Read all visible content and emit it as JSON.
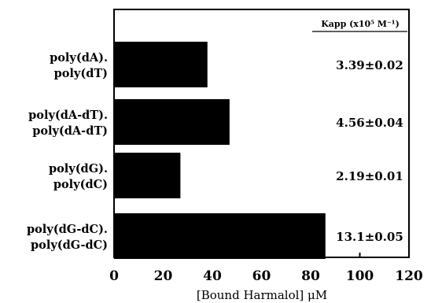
{
  "chart_data": {
    "type": "bar",
    "orientation": "horizontal",
    "categories": [
      [
        "poly(dA).",
        "poly(dT)"
      ],
      [
        "poly(dA-dT).",
        "poly(dA-dT)"
      ],
      [
        "poly(dG).",
        "poly(dC)"
      ],
      [
        "poly(dG-dC).",
        "poly(dG-dC)"
      ]
    ],
    "values": [
      38,
      47,
      27,
      86
    ],
    "annotations": [
      "3.39±0.02",
      "4.56±0.04",
      "2.19±0.01",
      "13.1±0.05"
    ],
    "annotation_header": "Kapp (x10⁵ M⁻¹)",
    "xlabel": "[Bound Harmalol] μM",
    "ylabel": "",
    "title": "",
    "xlim": [
      0,
      120
    ],
    "xticks": [
      "0",
      "20",
      "40",
      "60",
      "80",
      "100",
      "120"
    ],
    "bar_color": "#000000",
    "grid": false
  }
}
